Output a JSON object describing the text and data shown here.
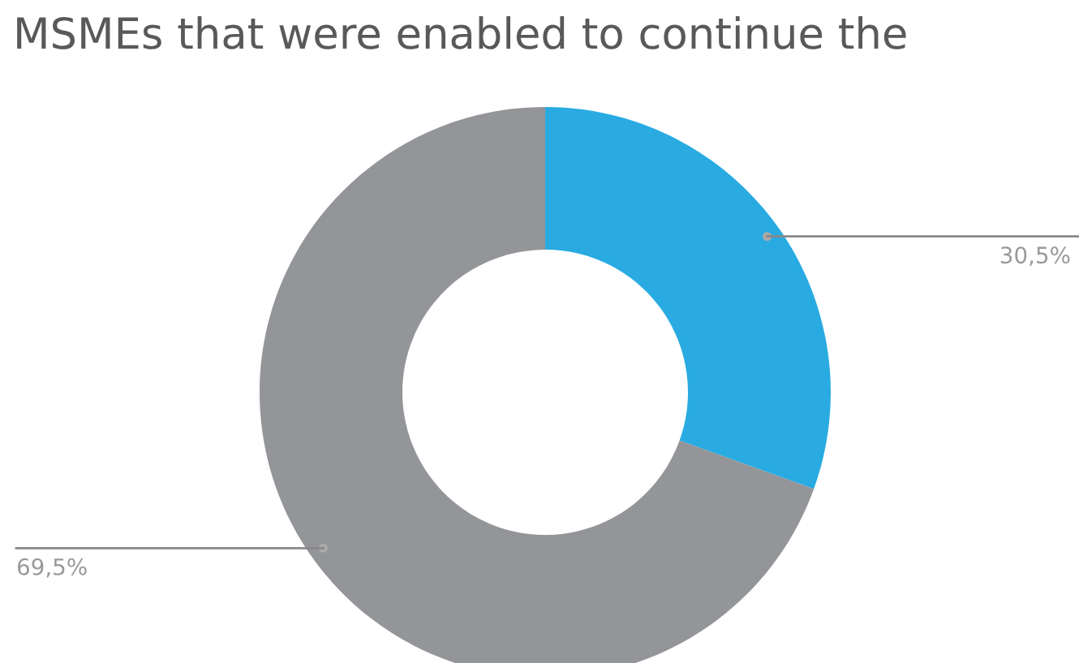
{
  "chart_data": {
    "type": "donut",
    "title": "MSMEs that were enabled to continue the",
    "categories": [
      null,
      null
    ],
    "values": [
      30.5,
      69.5
    ],
    "colors": [
      "#29abe2",
      "#939598"
    ],
    "value_labels": [
      "30,5%",
      "69,5%"
    ]
  }
}
